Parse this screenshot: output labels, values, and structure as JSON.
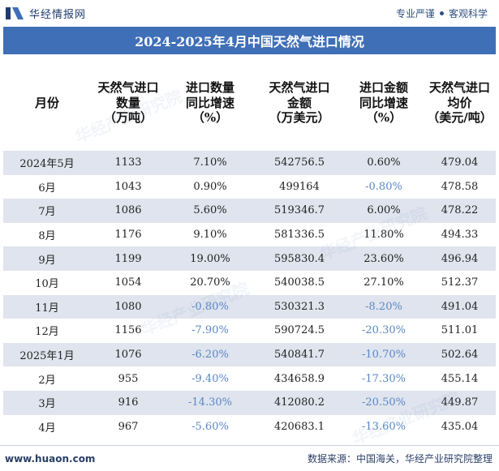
{
  "header": {
    "brand": "华经情报网",
    "slogan_left": "专业严谨",
    "slogan_right": "客观科学"
  },
  "title": "2024-2025年4月中国天然气进口情况",
  "table": {
    "columns": [
      [
        "月份"
      ],
      [
        "天然气进口",
        "数量",
        "（万吨）"
      ],
      [
        "进口数量",
        "同比增速",
        "（%）"
      ],
      [
        "天然气进口",
        "金额",
        "（万美元）"
      ],
      [
        "进口金额",
        "同比增速",
        "（%）"
      ],
      [
        "天然气进口",
        "均价",
        "（美元/吨）"
      ]
    ],
    "rows": [
      [
        "2024年5月",
        "1133",
        "7.10%",
        "542756.5",
        "0.60%",
        "479.04"
      ],
      [
        "6月",
        "1043",
        "0.90%",
        "499164",
        "-0.80%",
        "478.58"
      ],
      [
        "7月",
        "1086",
        "5.60%",
        "519346.7",
        "6.00%",
        "478.22"
      ],
      [
        "8月",
        "1176",
        "9.10%",
        "581336.5",
        "11.80%",
        "494.33"
      ],
      [
        "9月",
        "1199",
        "19.00%",
        "595830.4",
        "23.60%",
        "496.94"
      ],
      [
        "10月",
        "1054",
        "20.70%",
        "540038.5",
        "27.10%",
        "512.37"
      ],
      [
        "11月",
        "1080",
        "-0.80%",
        "530321.3",
        "-8.20%",
        "491.04"
      ],
      [
        "12月",
        "1156",
        "-7.90%",
        "590724.5",
        "-20.30%",
        "511.01"
      ],
      [
        "2025年1月",
        "1076",
        "-6.20%",
        "540841.7",
        "-10.70%",
        "502.64"
      ],
      [
        "2月",
        "955",
        "-9.40%",
        "434658.9",
        "-17.30%",
        "455.14"
      ],
      [
        "3月",
        "916",
        "-14.30%",
        "412080.2",
        "-20.50%",
        "449.87"
      ],
      [
        "4月",
        "967",
        "-5.60%",
        "420683.1",
        "-13.60%",
        "435.04"
      ]
    ]
  },
  "watermark_text": "华经产业研究院",
  "footer": {
    "url": "www.huaon.com",
    "source": "数据来源：中国海关，华经产业研究院整理"
  },
  "colors": {
    "title_bg": "#3f6fb7",
    "row_alt": "#dfe4ee",
    "negative": "#5a87c4"
  }
}
